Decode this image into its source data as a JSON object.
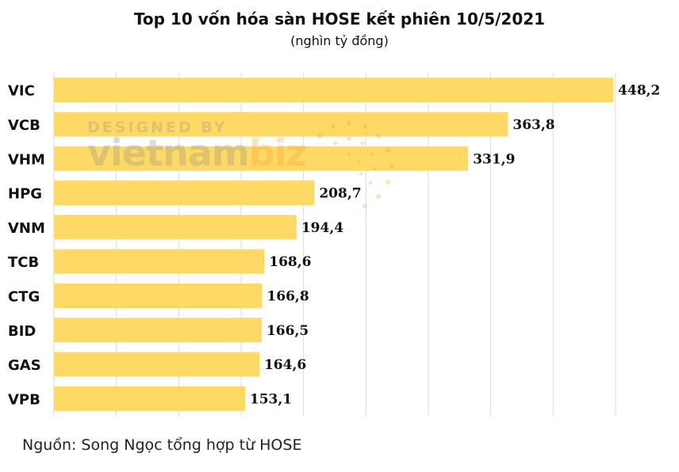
{
  "chart_data": {
    "type": "bar",
    "orientation": "horizontal",
    "title": "Top 10 vốn hóa sàn HOSE kết phiên 10/5/2021",
    "subtitle": "(nghìn tỷ đồng)",
    "categories": [
      "VIC",
      "VCB",
      "VHM",
      "HPG",
      "VNM",
      "TCB",
      "CTG",
      "BID",
      "GAS",
      "VPB"
    ],
    "values": [
      448.2,
      363.8,
      331.9,
      208.7,
      194.4,
      168.6,
      166.8,
      166.5,
      164.6,
      153.1
    ],
    "value_labels": [
      "448,2",
      "363,8",
      "331,9",
      "208,7",
      "194,4",
      "168,6",
      "166,8",
      "166,5",
      "164,6",
      "153,1"
    ],
    "xlim": [
      0,
      450
    ],
    "grid": "vertical",
    "bar_color": "#FFD966"
  },
  "source": "Nguồn: Song Ngọc tổng hợp từ HOSE",
  "watermark": {
    "line1": "DESIGNED BY",
    "brand_main": "vietnam",
    "brand_accent": "biz"
  }
}
